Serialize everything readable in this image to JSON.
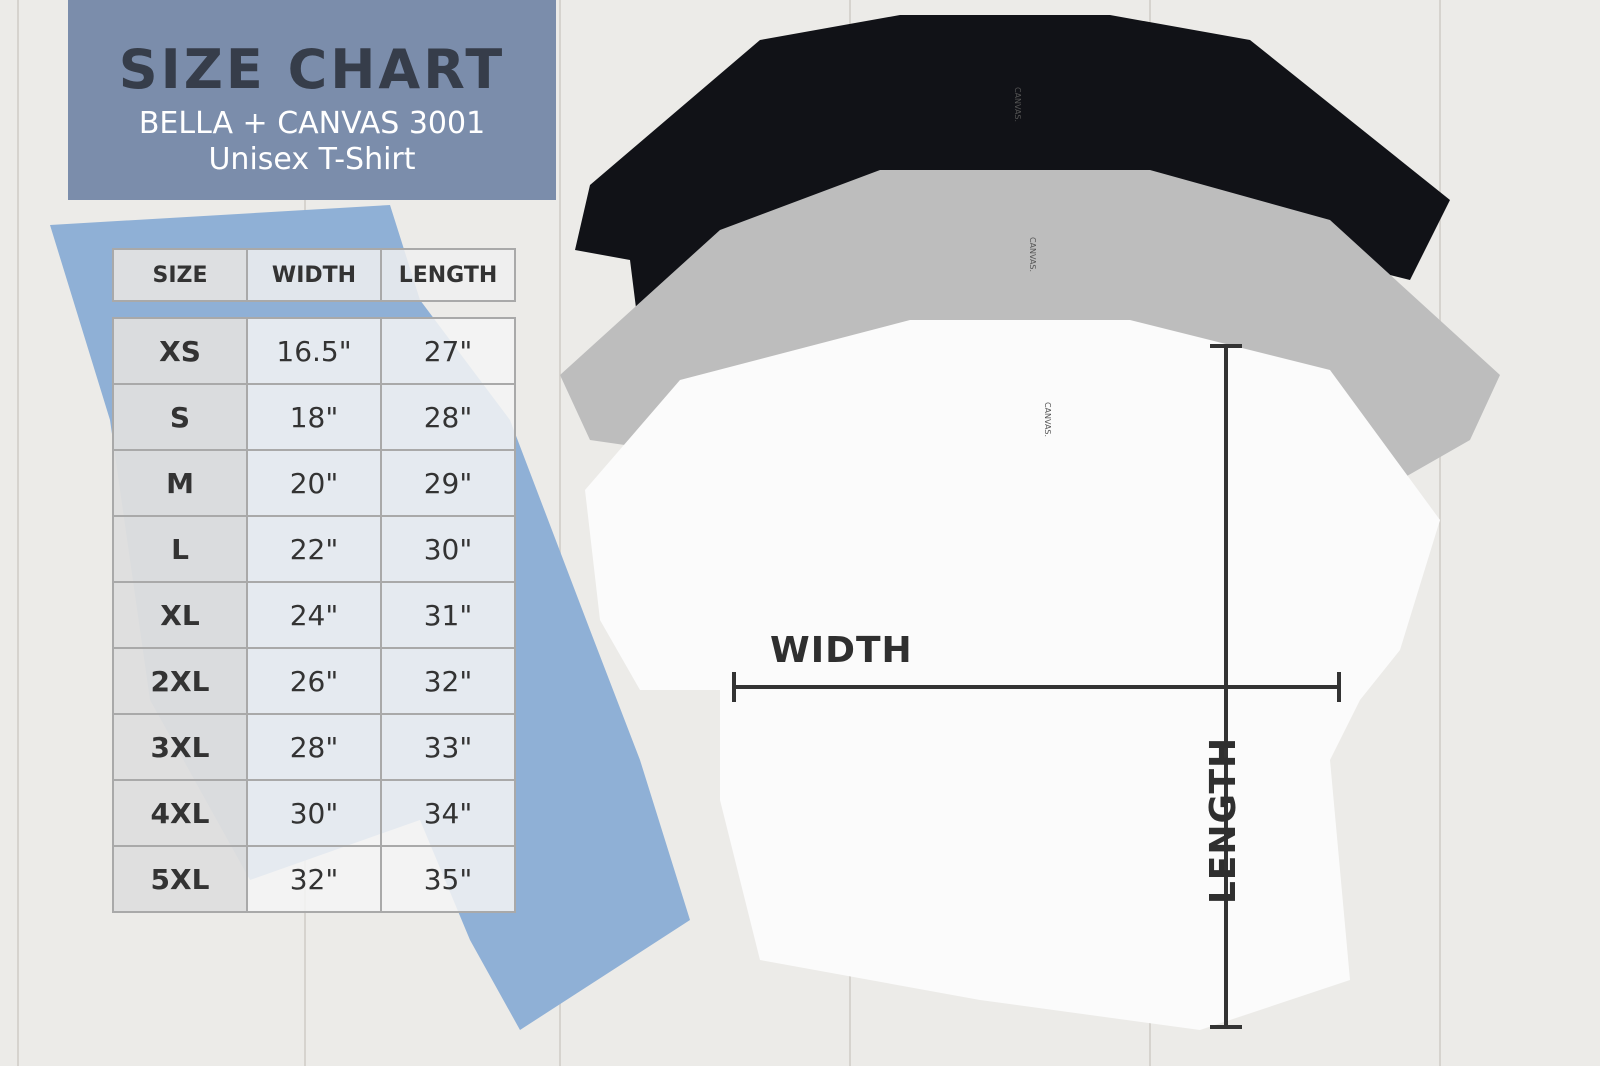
{
  "header": {
    "title": "SIZE CHART",
    "subtitle_line1": "BELLA + CANVAS 3001",
    "subtitle_line2": "Unisex T-Shirt"
  },
  "table": {
    "columns": [
      "SIZE",
      "WIDTH",
      "LENGTH"
    ],
    "rows": [
      {
        "size": "XS",
        "width": "16.5\"",
        "length": "27\""
      },
      {
        "size": "S",
        "width": "18\"",
        "length": "28\""
      },
      {
        "size": "M",
        "width": "20\"",
        "length": "29\""
      },
      {
        "size": "L",
        "width": "22\"",
        "length": "30\""
      },
      {
        "size": "XL",
        "width": "24\"",
        "length": "31\""
      },
      {
        "size": "2XL",
        "width": "26\"",
        "length": "32\""
      },
      {
        "size": "3XL",
        "width": "28\"",
        "length": "33\""
      },
      {
        "size": "4XL",
        "width": "30\"",
        "length": "34\""
      },
      {
        "size": "5XL",
        "width": "32\"",
        "length": "35\""
      }
    ]
  },
  "diagram": {
    "width_label": "WIDTH",
    "length_label": "LENGTH"
  },
  "tag_label": "CANVAS.",
  "colors": {
    "header_bg": "#7b8dab",
    "title": "#363d4a",
    "shirt_black": "#111217",
    "shirt_gray": "#bdbdbd",
    "shirt_white": "#ffffff",
    "jeans": "#8fb0d6"
  }
}
